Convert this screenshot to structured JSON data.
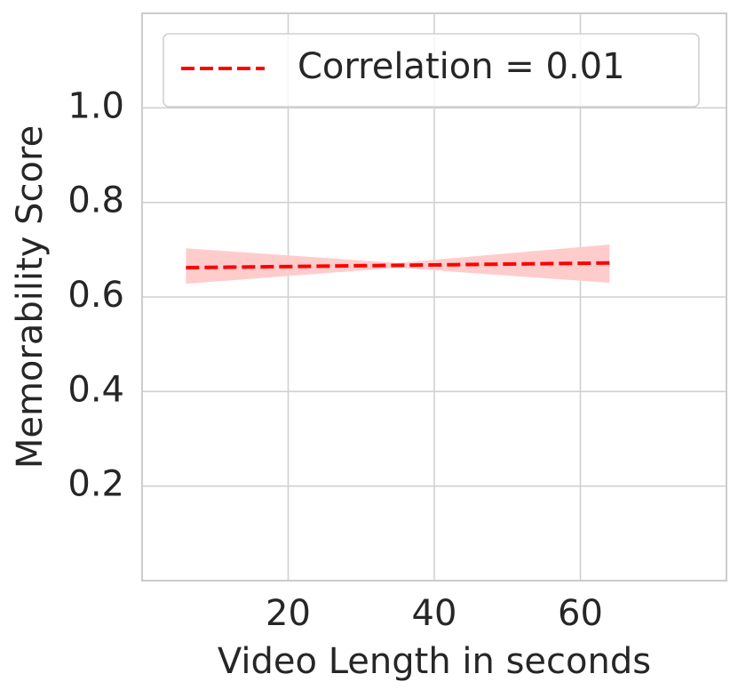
{
  "chart_data": {
    "type": "line",
    "xlabel": "Video Length in seconds",
    "ylabel": "Memorability Score",
    "x": [
      6,
      35,
      64
    ],
    "series": [
      {
        "name": "Correlation = 0.01",
        "color": "#ff0000",
        "band_color": "#ffcccc",
        "values": [
          0.662,
          0.667,
          0.672
        ],
        "lower": [
          0.628,
          0.662,
          0.63
        ],
        "upper": [
          0.703,
          0.672,
          0.711
        ]
      }
    ],
    "xlim": [
      0,
      80
    ],
    "xticks": [
      20,
      40,
      60
    ],
    "ylim": [
      0,
      1.2
    ],
    "yticks": [
      0.2,
      0.4,
      0.6,
      0.8,
      {
        "value": 1.0,
        "label": "1.0"
      }
    ],
    "grid": true,
    "legend": "upper left"
  }
}
